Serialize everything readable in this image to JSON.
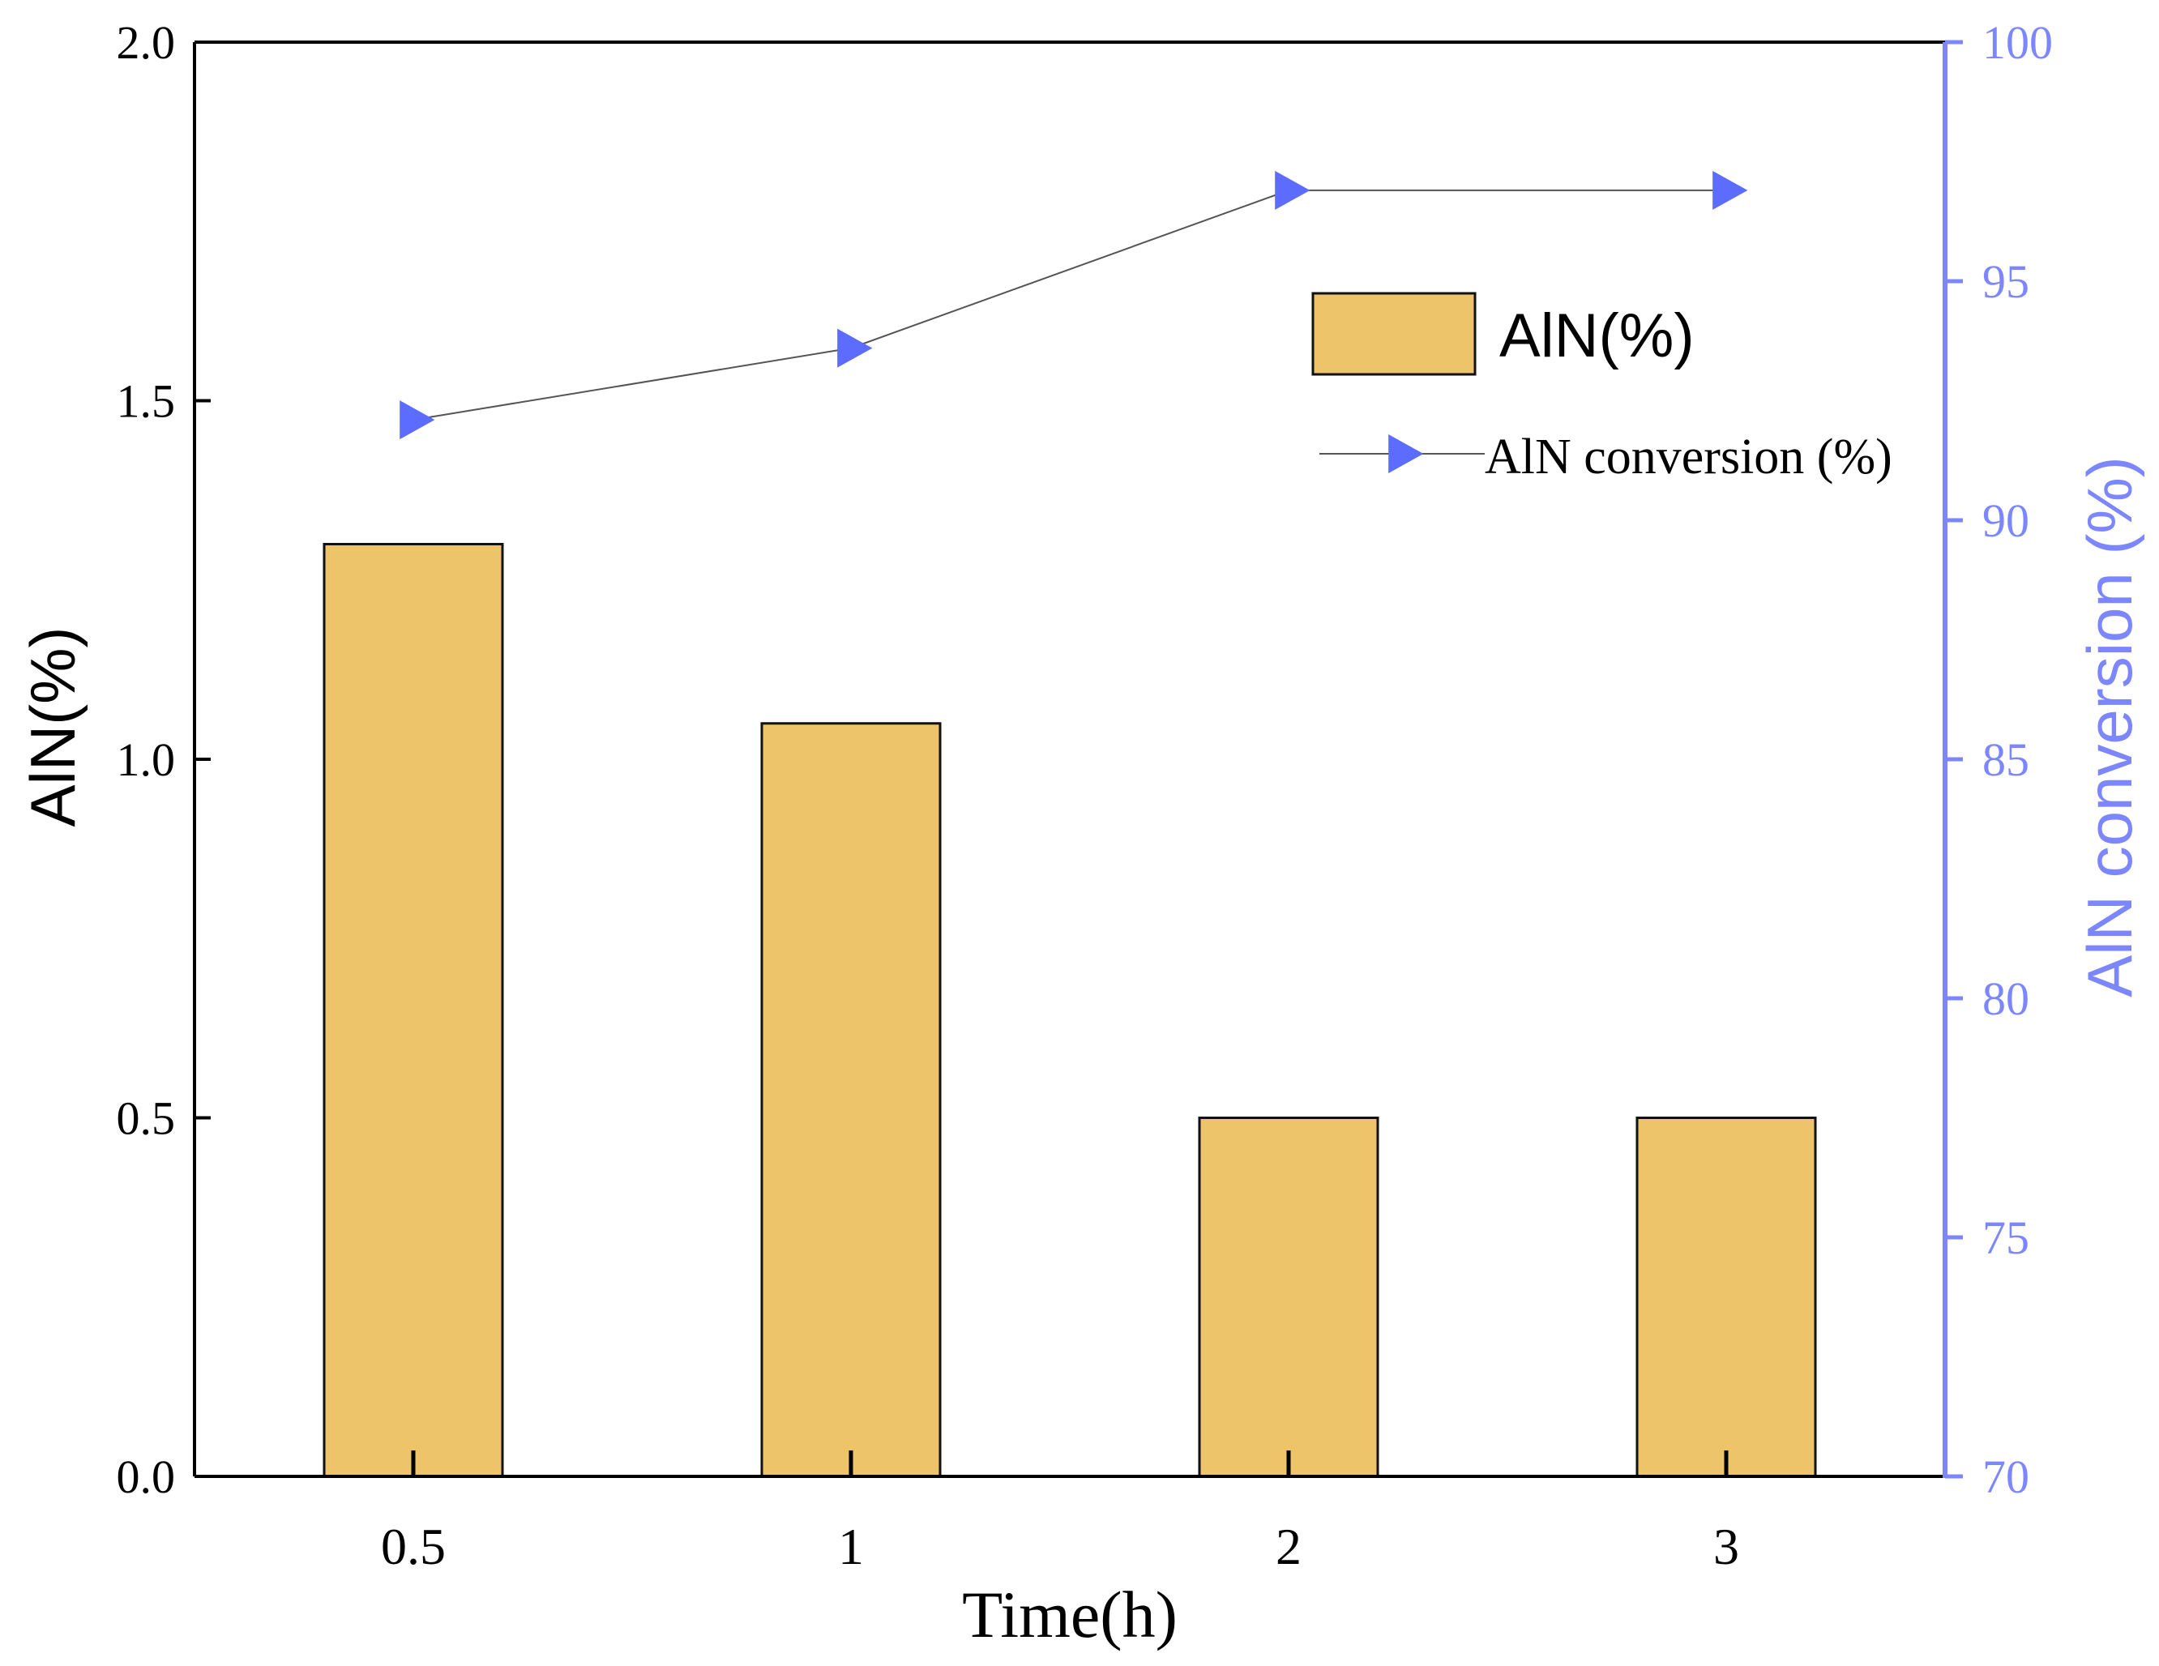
{
  "chart_data": {
    "type": "bar",
    "categories": [
      "0.5",
      "1",
      "2",
      "3"
    ],
    "xlabel": "Time(h)",
    "ylabel_left": "AlN(%)",
    "ylabel_right": "AlN conversion (%)",
    "ylim_left": [
      0,
      2.0
    ],
    "ylim_right": [
      70,
      100
    ],
    "yticks_left": [
      "0.0",
      "0.5",
      "1.0",
      "1.5",
      "2.0"
    ],
    "yticks_right": [
      "70",
      "75",
      "80",
      "85",
      "90",
      "95",
      "100"
    ],
    "grid": false,
    "legend_position": "top-right",
    "series": [
      {
        "name": "AlN(%)",
        "type": "bar",
        "axis": "left",
        "values": [
          1.3,
          1.05,
          0.5,
          0.5
        ],
        "color": "#EDC46A"
      },
      {
        "name": "AlN conversion (%)",
        "type": "line",
        "axis": "right",
        "marker": "right-triangle",
        "values": [
          92.1,
          93.6,
          96.9,
          96.9
        ],
        "color": "#5B6CFF"
      }
    ],
    "colors": {
      "axis_left": "#000000",
      "axis_right": "#7C86FF",
      "line": "#555555"
    }
  }
}
